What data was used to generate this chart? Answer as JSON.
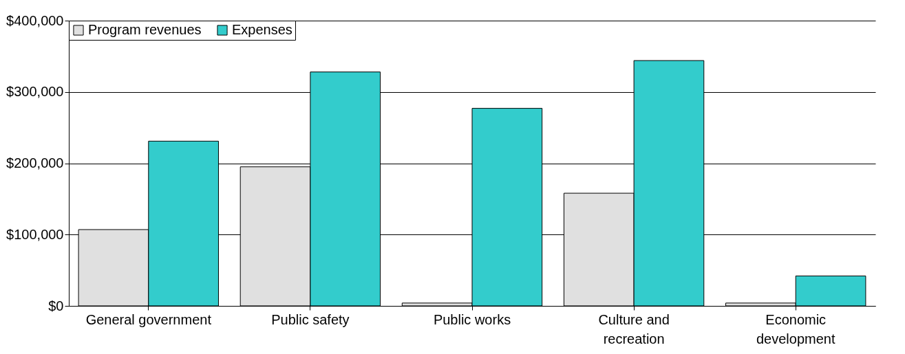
{
  "chart_data": {
    "type": "bar",
    "categories": [
      "General government",
      "Public safety",
      "Public works",
      "Culture and recreation",
      "Economic development"
    ],
    "series": [
      {
        "name": "Program revenues",
        "color": "#e0e0e0",
        "values": [
          107000,
          195000,
          4000,
          158000,
          4000
        ]
      },
      {
        "name": "Expenses",
        "color": "#33cccc",
        "values": [
          231000,
          328000,
          277000,
          344000,
          42000
        ]
      }
    ],
    "ylim": [
      0,
      400000
    ],
    "yticks": [
      {
        "value": 0,
        "label": "$0"
      },
      {
        "value": 100000,
        "label": "$100,000"
      },
      {
        "value": 200000,
        "label": "$200,000"
      },
      {
        "value": 300000,
        "label": "$300,000"
      },
      {
        "value": 400000,
        "label": "$400,000"
      }
    ],
    "grid": "y",
    "legend": "top"
  }
}
